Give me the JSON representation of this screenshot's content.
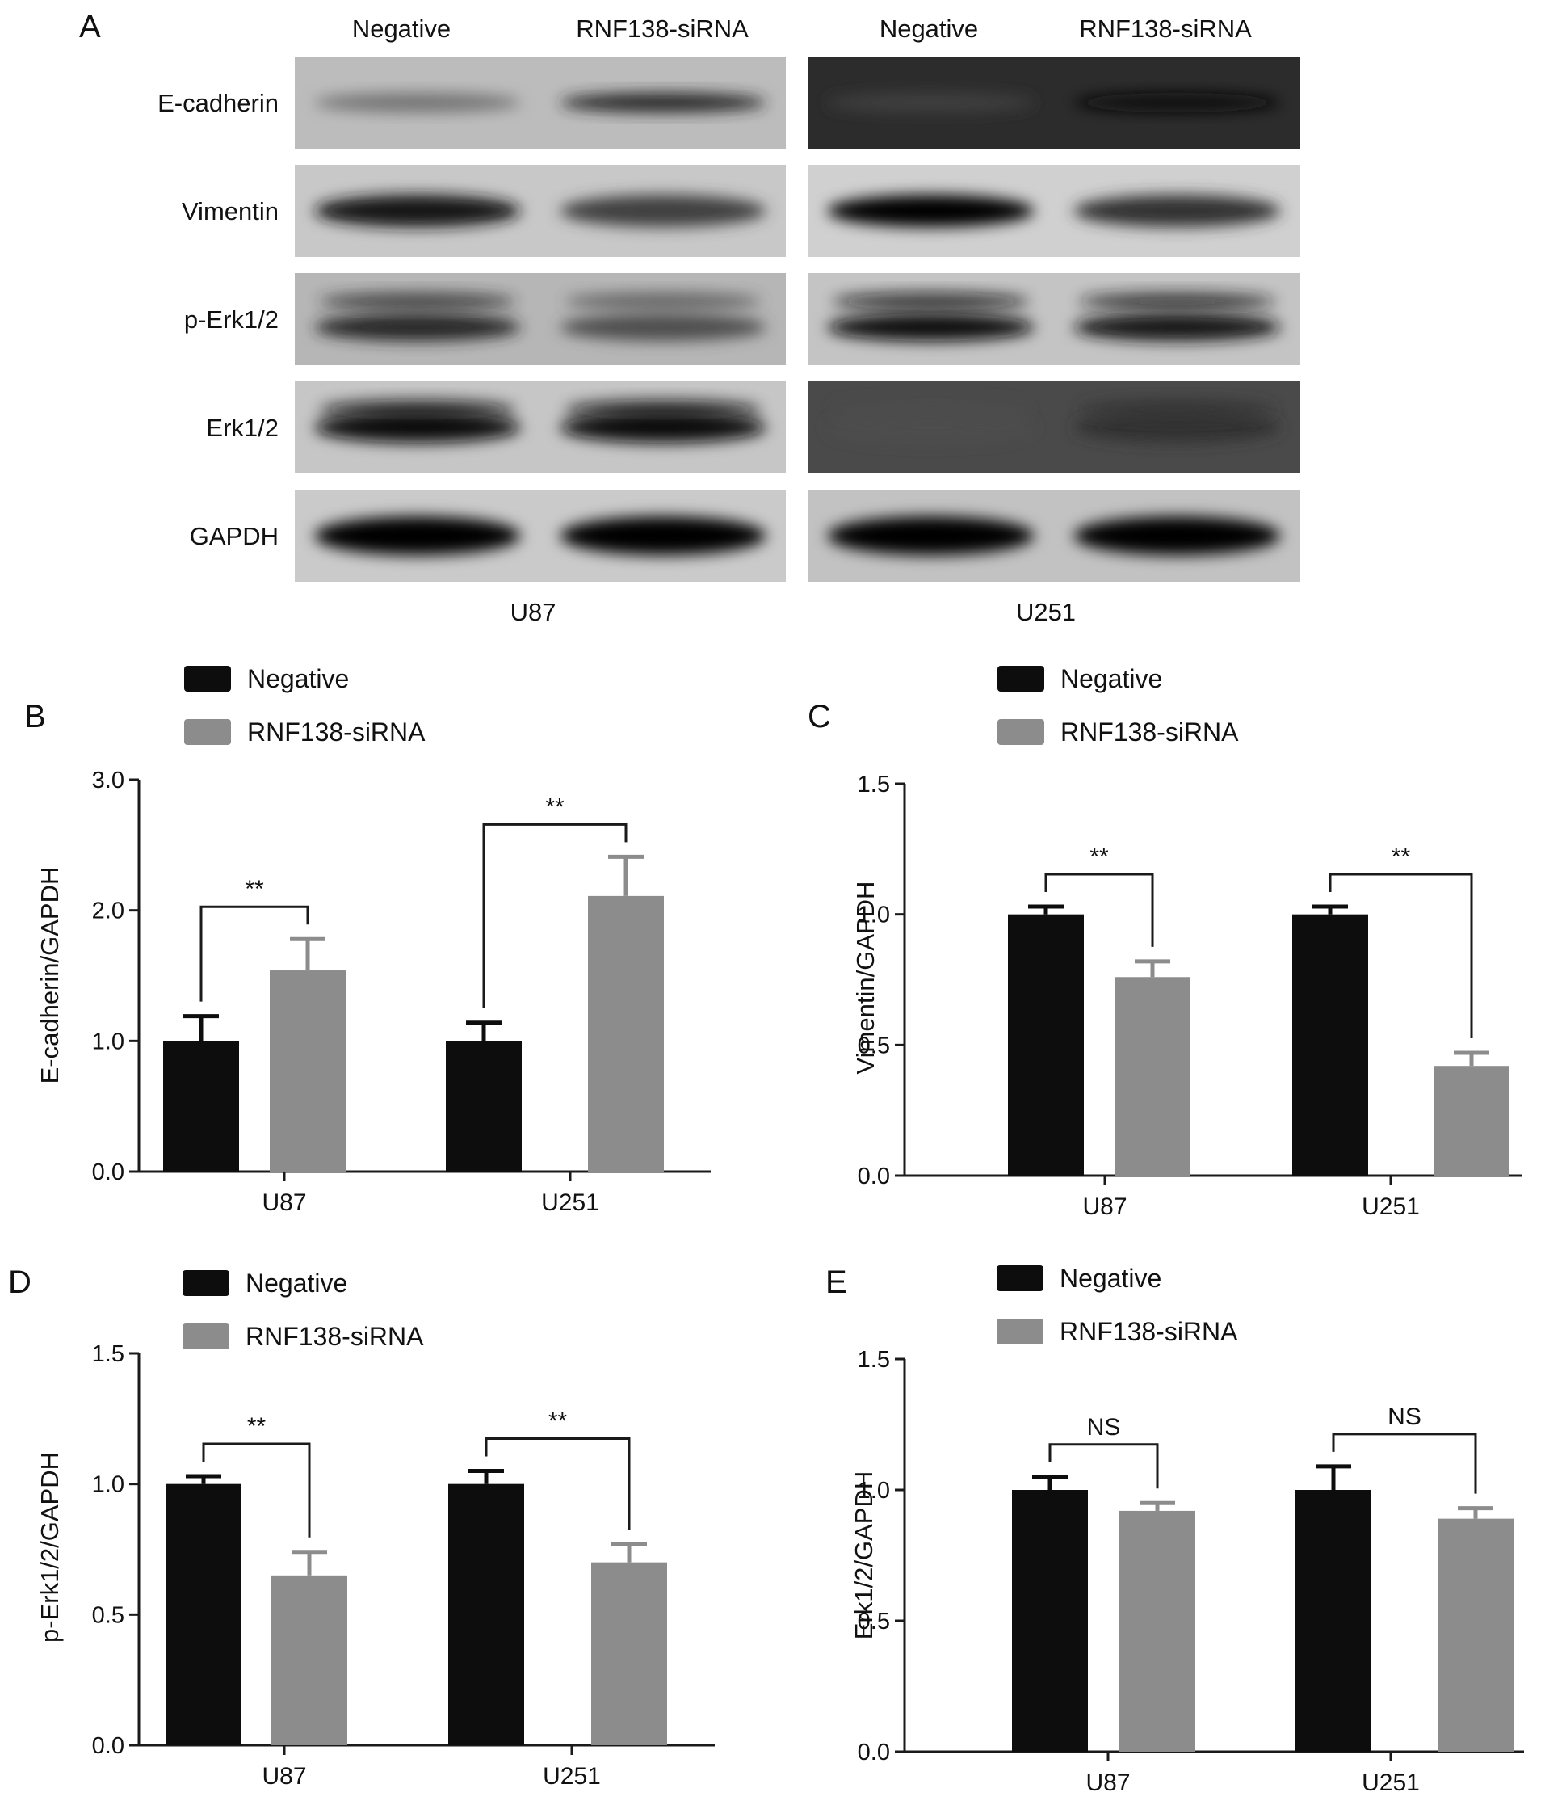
{
  "colors": {
    "negative": "#0d0d0d",
    "sirna": "#8c8c8c",
    "axis": "#1a1a1a",
    "blot_bg_light": "#bdbdbd",
    "blot_bg_dark": "#2b2b2b"
  },
  "panel_a": {
    "letter": "A",
    "lanes": [
      "Negative",
      "RNF138-siRNA",
      "Negative",
      "RNF138-siRNA"
    ],
    "rows": [
      "E-cadherin",
      "Vimentin",
      "p-Erk1/2",
      "Erk1/2",
      "GAPDH"
    ],
    "cell_lines": [
      "U87",
      "U251"
    ]
  },
  "chart_data": [
    {
      "panel": "B",
      "type": "bar",
      "categories": [
        "U87",
        "U251"
      ],
      "series": [
        {
          "name": "Negative",
          "values": [
            1.0,
            1.0
          ],
          "errors": [
            0.19,
            0.14
          ]
        },
        {
          "name": "RNF138-siRNA",
          "values": [
            1.54,
            2.11
          ],
          "errors": [
            0.24,
            0.3
          ]
        }
      ],
      "ylabel": "E-cadherin/GAPDH",
      "ylim": [
        0,
        3.0
      ],
      "yticks": [
        "0.0",
        "1.0",
        "2.0",
        "3.0"
      ],
      "significance": [
        "**",
        "**"
      ],
      "legend": "top-left"
    },
    {
      "panel": "C",
      "type": "bar",
      "categories": [
        "U87",
        "U251"
      ],
      "series": [
        {
          "name": "Negative",
          "values": [
            1.0,
            1.0
          ],
          "errors": [
            0.03,
            0.03
          ]
        },
        {
          "name": "RNF138-siRNA",
          "values": [
            0.76,
            0.42
          ],
          "errors": [
            0.06,
            0.05
          ]
        }
      ],
      "ylabel": "Vimentin/GAPDH",
      "ylim": [
        0,
        1.5
      ],
      "yticks": [
        "0.0",
        "0.5",
        "1.0",
        "1.5"
      ],
      "significance": [
        "**",
        "**"
      ],
      "legend": "top-left"
    },
    {
      "panel": "D",
      "type": "bar",
      "categories": [
        "U87",
        "U251"
      ],
      "series": [
        {
          "name": "Negative",
          "values": [
            1.0,
            1.0
          ],
          "errors": [
            0.03,
            0.05
          ]
        },
        {
          "name": "RNF138-siRNA",
          "values": [
            0.65,
            0.7
          ],
          "errors": [
            0.09,
            0.07
          ]
        }
      ],
      "ylabel": "p-Erk1/2/GAPDH",
      "ylim": [
        0,
        1.5
      ],
      "yticks": [
        "0.0",
        "0.5",
        "1.0",
        "1.5"
      ],
      "significance": [
        "**",
        "**"
      ],
      "legend": "top-left"
    },
    {
      "panel": "E",
      "type": "bar",
      "categories": [
        "U87",
        "U251"
      ],
      "series": [
        {
          "name": "Negative",
          "values": [
            1.0,
            1.0
          ],
          "errors": [
            0.05,
            0.09
          ]
        },
        {
          "name": "RNF138-siRNA",
          "values": [
            0.92,
            0.89
          ],
          "errors": [
            0.03,
            0.04
          ]
        }
      ],
      "ylabel": "Erk1/2/GAPDH",
      "ylim": [
        0,
        1.5
      ],
      "yticks": [
        "0.0",
        "0.5",
        "1.0",
        "1.5"
      ],
      "significance": [
        "NS",
        "NS"
      ],
      "legend": "top-left"
    }
  ]
}
